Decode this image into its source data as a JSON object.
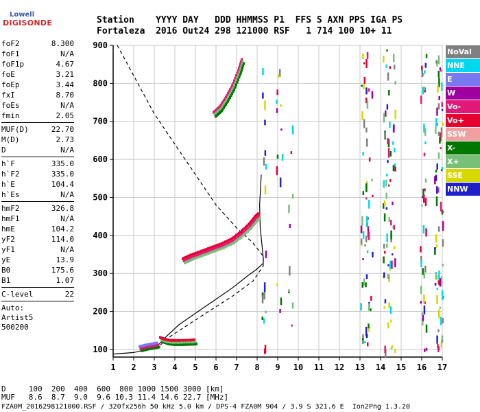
{
  "logo": {
    "brand_top": "Lowell",
    "brand_main": "DIGISONDE"
  },
  "header": {
    "line1": "Station    YYYY DAY   DDD HHMMSS P1  FFS S AXN PPS IGA PS",
    "line2": "Fortaleza  2016 Out24 298 121000 RSF   1 714 100 10+ 11"
  },
  "params": {
    "group1": [
      {
        "name": "foF2",
        "value": "8.300"
      },
      {
        "name": "foF1",
        "value": "N/A"
      },
      {
        "name": "foF1p",
        "value": "4.67"
      },
      {
        "name": "foE",
        "value": "3.21"
      },
      {
        "name": "foEp",
        "value": "3.44"
      },
      {
        "name": "fxI",
        "value": "8.70"
      },
      {
        "name": "foEs",
        "value": "N/A"
      },
      {
        "name": "fmin",
        "value": "2.05"
      }
    ],
    "group2": [
      {
        "name": "MUF(D)",
        "value": "22.70"
      },
      {
        "name": "M(D)",
        "value": "2.73"
      },
      {
        "name": "D",
        "value": "N/A"
      }
    ],
    "group3": [
      {
        "name": "h`F",
        "value": "335.0"
      },
      {
        "name": "h`F2",
        "value": "335.0"
      },
      {
        "name": "h`E",
        "value": "104.4"
      },
      {
        "name": "h`Es",
        "value": "N/A"
      }
    ],
    "group4": [
      {
        "name": "hmF2",
        "value": "326.8"
      },
      {
        "name": "hmF1",
        "value": "N/A"
      },
      {
        "name": "hmE",
        "value": "104.2"
      },
      {
        "name": "yF2",
        "value": "114.0"
      },
      {
        "name": "yF1",
        "value": "N/A"
      },
      {
        "name": "yE",
        "value": "13.9"
      },
      {
        "name": "B0",
        "value": "175.6"
      },
      {
        "name": "B1",
        "value": "1.07"
      }
    ],
    "group5": [
      {
        "name": "C-level",
        "value": "22"
      }
    ],
    "extra": [
      "Auto:",
      "Artist5",
      "500200"
    ]
  },
  "legend": [
    {
      "label": "NoVal",
      "color": "#808080"
    },
    {
      "label": "NNE",
      "color": "#00d8f0"
    },
    {
      "label": "E",
      "color": "#7878f0"
    },
    {
      "label": "W",
      "color": "#a000a0"
    },
    {
      "label": "Vo-",
      "color": "#e01878"
    },
    {
      "label": "Vo+",
      "color": "#e80030"
    },
    {
      "label": "SSW",
      "color": "#f0a0a0"
    },
    {
      "label": "X-",
      "color": "#007800"
    },
    {
      "label": "X+",
      "color": "#78c078"
    },
    {
      "label": "SSE",
      "color": "#d8d800"
    },
    {
      "label": "NNW",
      "color": "#2020c8"
    }
  ],
  "bottom": {
    "line1": "D     100  200  400  600  800 1000 1500 3000 [km]",
    "line2": "MUF   8.6  8.7  9.0  9.6 10.3 11.4 14.6 22.7 [MHz]",
    "line3": "FZA0M_2016298121000.RSF / 320fx256h 50 kHz 5.0 km / DPS-4 FZA0M 904 / 3.9 S 321.6 E  Ion2Png 1.3.20"
  },
  "chart_data": {
    "type": "scatter",
    "xlim": [
      1,
      17
    ],
    "ylim": [
      80,
      900
    ],
    "x_ticks": [
      1,
      2,
      3,
      4,
      5,
      6,
      7,
      8,
      9,
      10,
      11,
      12,
      13,
      14,
      15,
      16,
      17
    ],
    "y_ticks": [
      100,
      200,
      300,
      400,
      500,
      600,
      700,
      800,
      900
    ],
    "x_unit": "MHz",
    "y_unit": "km",
    "grid": true,
    "solid_profile": [
      [
        1.0,
        88
      ],
      [
        2.0,
        92
      ],
      [
        3.0,
        105
      ],
      [
        3.2,
        112
      ],
      [
        3.6,
        135
      ],
      [
        4.2,
        165
      ],
      [
        5.0,
        195
      ],
      [
        6.0,
        232
      ],
      [
        6.8,
        262
      ],
      [
        7.5,
        292
      ],
      [
        8.0,
        312
      ],
      [
        8.3,
        327
      ],
      [
        8.3,
        340
      ],
      [
        8.15,
        420
      ],
      [
        8.12,
        480
      ],
      [
        8.2,
        560
      ]
    ],
    "dashed_profile": [
      [
        1.2,
        900
      ],
      [
        2.0,
        820
      ],
      [
        3.0,
        720
      ],
      [
        4.0,
        640
      ],
      [
        5.0,
        560
      ],
      [
        6.0,
        480
      ],
      [
        7.0,
        420
      ],
      [
        7.8,
        380
      ],
      [
        8.3,
        345
      ],
      [
        8.3,
        320
      ],
      [
        7.8,
        280
      ],
      [
        6.8,
        240
      ],
      [
        5.5,
        195
      ],
      [
        4.5,
        160
      ],
      [
        3.8,
        135
      ],
      [
        3.3,
        112
      ]
    ],
    "f2_trace": [
      [
        4.4,
        335
      ],
      [
        4.8,
        345
      ],
      [
        5.3,
        355
      ],
      [
        5.8,
        365
      ],
      [
        6.3,
        375
      ],
      [
        6.8,
        388
      ],
      [
        7.2,
        405
      ],
      [
        7.6,
        425
      ],
      [
        7.9,
        445
      ],
      [
        8.1,
        455
      ]
    ],
    "upper_trace": [
      [
        5.9,
        720
      ],
      [
        6.2,
        735
      ],
      [
        6.5,
        760
      ],
      [
        6.8,
        790
      ],
      [
        7.1,
        830
      ],
      [
        7.3,
        865
      ]
    ],
    "e_trace": [
      [
        3.3,
        128
      ],
      [
        3.6,
        122
      ],
      [
        3.9,
        120
      ],
      [
        4.3,
        120
      ],
      [
        4.8,
        121
      ],
      [
        5.0,
        122
      ]
    ],
    "low_trace": [
      [
        2.3,
        104
      ],
      [
        2.6,
        108
      ],
      [
        2.9,
        111
      ],
      [
        3.2,
        114
      ]
    ]
  }
}
